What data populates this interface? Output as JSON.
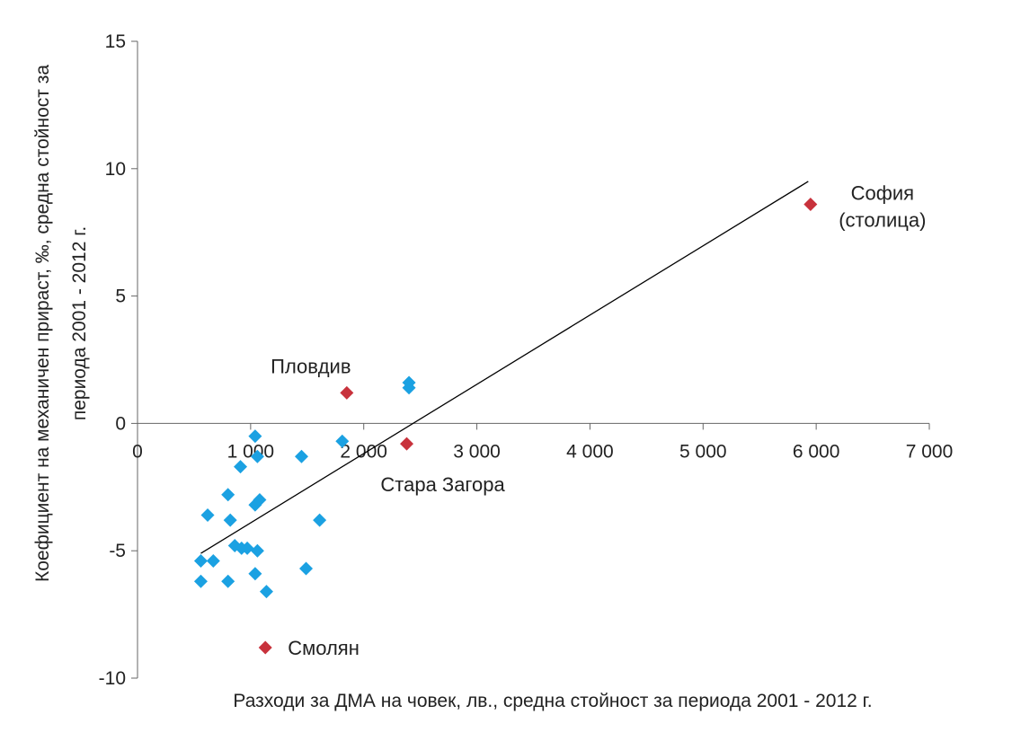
{
  "chart_data": {
    "type": "scatter",
    "xlabel": "Разходи за ДМА на човек, лв., средна стойност за периода 2001 - 2012 г.",
    "ylabel_line1": "Коефициент на механичен прираст, ‰, средна стойност за",
    "ylabel_line2": "периода 2001 - 2012 г.",
    "xlim": [
      0,
      7000
    ],
    "ylim": [
      -10,
      15
    ],
    "x_ticks": [
      0,
      1000,
      2000,
      3000,
      4000,
      5000,
      6000,
      7000
    ],
    "x_tick_labels": [
      "0",
      "1 000",
      "2 000",
      "3 000",
      "4 000",
      "5 000",
      "6 000",
      "7 000"
    ],
    "y_ticks": [
      -10,
      -5,
      0,
      5,
      10,
      15
    ],
    "y_tick_labels": [
      "-10",
      "-5",
      "0",
      "5",
      "10",
      "15"
    ],
    "grid": false,
    "colors": {
      "regular": "#1ba1e2",
      "highlight": "#c8323c",
      "trendline": "#000000"
    },
    "series": [
      {
        "marker": "diamond",
        "points": [
          [
            560,
            -5.4
          ],
          [
            560,
            -6.2
          ],
          [
            620,
            -3.6
          ],
          [
            670,
            -5.4
          ],
          [
            800,
            -2.8
          ],
          [
            800,
            -6.2
          ],
          [
            820,
            -3.8
          ],
          [
            860,
            -4.8
          ],
          [
            910,
            -1.7
          ],
          [
            920,
            -4.9
          ],
          [
            970,
            -4.9
          ],
          [
            1040,
            -0.5
          ],
          [
            1040,
            -3.2
          ],
          [
            1040,
            -5.9
          ],
          [
            1060,
            -1.3
          ],
          [
            1060,
            -5.0
          ],
          [
            1080,
            -3.0
          ],
          [
            1140,
            -6.6
          ],
          [
            1450,
            -1.3
          ],
          [
            1490,
            -5.7
          ],
          [
            1610,
            -3.8
          ],
          [
            1810,
            -0.7
          ],
          [
            2400,
            1.6
          ],
          [
            2400,
            1.4
          ]
        ]
      },
      {
        "marker": "diamond",
        "points": [
          {
            "x": 5950,
            "y": 8.6,
            "label_lines": [
              "София",
              "(столица)"
            ],
            "label_anchor": "right"
          },
          {
            "x": 1850,
            "y": 1.2,
            "label_lines": [
              "Пловдив"
            ],
            "label_anchor": "above"
          },
          {
            "x": 2380,
            "y": -0.8,
            "label_lines": [
              "Стара Загора"
            ],
            "label_anchor": "below"
          },
          {
            "x": 1130,
            "y": -8.8,
            "label_lines": [
              "Смолян"
            ],
            "label_anchor": "right"
          }
        ]
      }
    ],
    "trendline": {
      "x": [
        560,
        5930
      ],
      "y": [
        -5.1,
        9.5
      ]
    }
  }
}
